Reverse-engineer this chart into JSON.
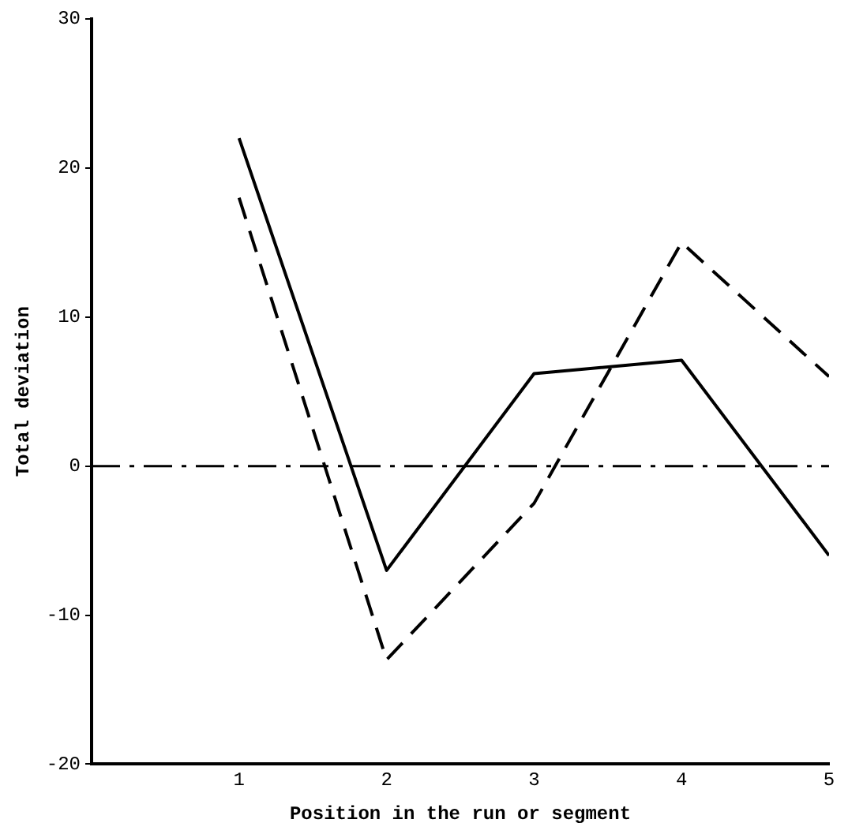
{
  "chart_data": {
    "type": "line",
    "xlabel": "Position in the run or segment",
    "ylabel": "Total deviation",
    "x": [
      1,
      2,
      3,
      4,
      5
    ],
    "series": [
      {
        "color": "#000000",
        "line_style": "solid",
        "values": [
          22,
          -7,
          6.2,
          7.1,
          -6
        ]
      },
      {
        "color": "#000000",
        "line_style": "dashed",
        "values": [
          18,
          -13,
          -2.5,
          15,
          6
        ]
      }
    ],
    "xlim": [
      0,
      5
    ],
    "xticks": [
      1,
      2,
      3,
      4,
      5
    ],
    "ylim": [
      -20,
      30
    ],
    "yticks": [
      -20,
      -10,
      0,
      10,
      20,
      30
    ],
    "ref_lines": [
      {
        "axis": "y",
        "value": 0,
        "line_style": "dashdot",
        "color": "#000000"
      }
    ],
    "grid": false,
    "legend": false,
    "marker": "none"
  }
}
